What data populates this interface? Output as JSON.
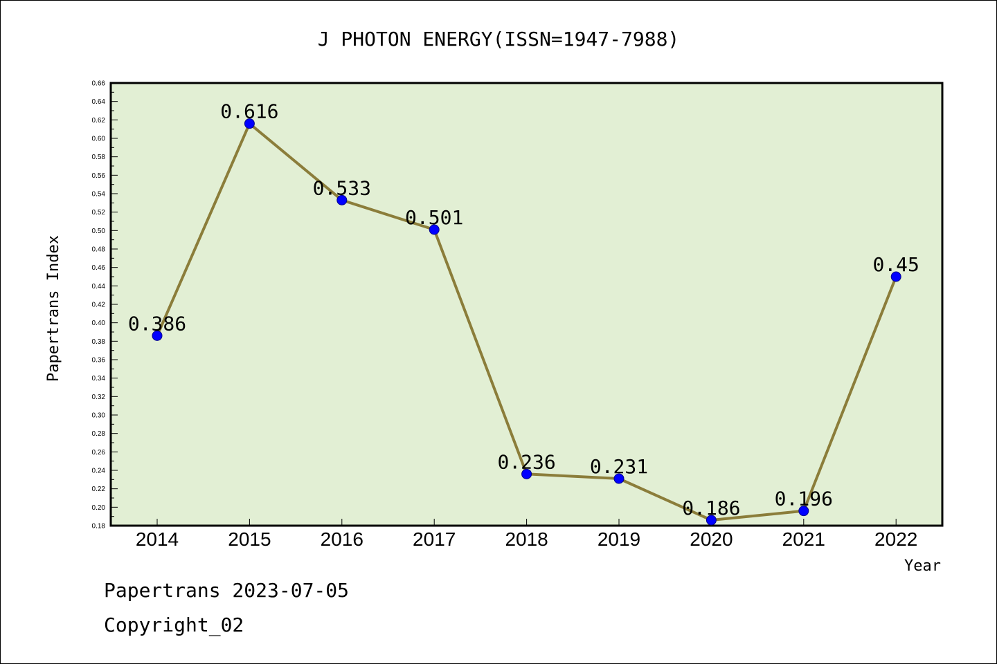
{
  "chart_data": {
    "type": "line",
    "title": "J PHOTON ENERGY(ISSN=1947-7988)",
    "xlabel": "Year",
    "ylabel": "Papertrans Index",
    "categories": [
      "2014",
      "2015",
      "2016",
      "2017",
      "2018",
      "2019",
      "2020",
      "2021",
      "2022"
    ],
    "values": [
      0.386,
      0.616,
      0.533,
      0.501,
      0.236,
      0.231,
      0.186,
      0.196,
      0.45
    ],
    "data_labels": [
      "0.386",
      "0.616",
      "0.533",
      "0.501",
      "0.236",
      "0.231",
      "0.186",
      "0.196",
      "0.45"
    ],
    "ylim": [
      0.18,
      0.66
    ],
    "yticks": [
      "0.18",
      "0.20",
      "0.22",
      "0.24",
      "0.26",
      "0.28",
      "0.30",
      "0.32",
      "0.34",
      "0.36",
      "0.38",
      "0.40",
      "0.42",
      "0.44",
      "0.46",
      "0.48",
      "0.50",
      "0.52",
      "0.54",
      "0.56",
      "0.58",
      "0.60",
      "0.62",
      "0.64",
      "0.66"
    ],
    "grid": false,
    "line_color": "#8b7d3a",
    "marker_color": "#0000ff",
    "plot_background": "#e2efd4"
  },
  "footer": {
    "line1": "Papertrans 2023-07-05",
    "line2": "Copyright_02"
  }
}
